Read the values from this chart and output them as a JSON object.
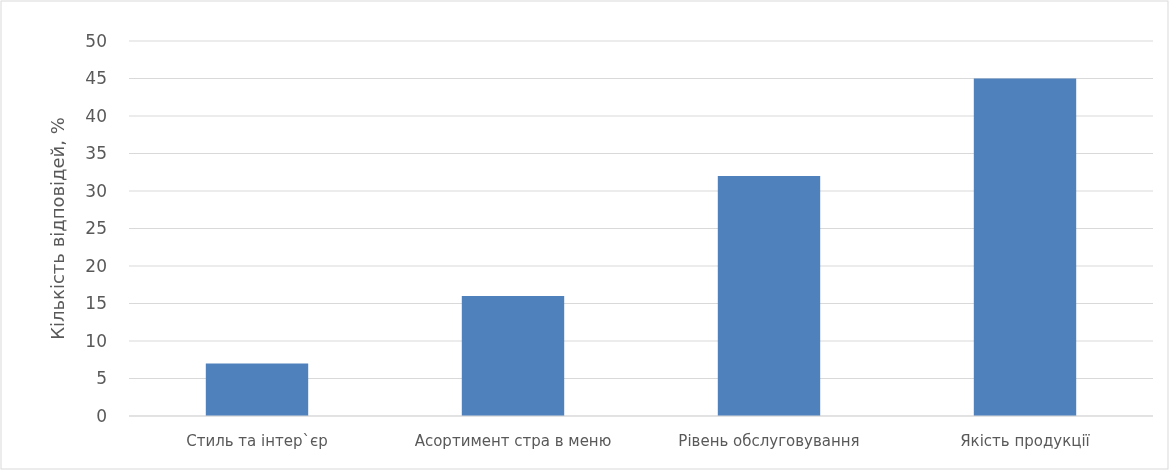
{
  "chart_data": {
    "type": "bar",
    "ylabel": "Кількість відповідей, %",
    "categories": [
      "Стиль та інтер`єр",
      "Асортимент стра в меню",
      "Рівень обслуговування",
      "Якість продукції"
    ],
    "values": [
      7,
      16,
      32,
      45
    ],
    "color": "#4f81bd",
    "ylim": [
      0,
      50
    ],
    "yticks": [
      0,
      5,
      10,
      15,
      20,
      25,
      30,
      35,
      40,
      45,
      50
    ],
    "grid": "y"
  }
}
